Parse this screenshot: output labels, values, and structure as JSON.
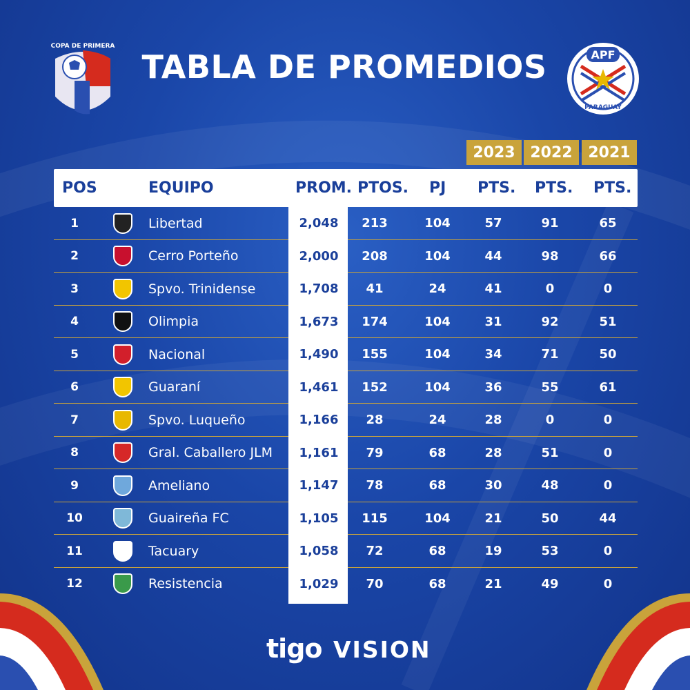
{
  "header": {
    "title": "TABLA DE PROMEDIOS",
    "left_logo_text": "COPA DE PRIMERA",
    "right_logo_text": "APF",
    "right_logo_subtext": "PARAGUAY"
  },
  "years": [
    "2023",
    "2022",
    "2021"
  ],
  "columns": {
    "pos": "POS",
    "equipo": "EQUIPO",
    "prom": "PROM.",
    "ptos": "PTOS.",
    "pj": "PJ",
    "pts2023": "PTS.",
    "pts2022": "PTS.",
    "pts2021": "PTS."
  },
  "rows": [
    {
      "pos": "1",
      "team": "Libertad",
      "prom": "2,048",
      "ptos": "213",
      "pj": "104",
      "p2023": "57",
      "p2022": "91",
      "p2021": "65",
      "crest_color": "#222222"
    },
    {
      "pos": "2",
      "team": "Cerro Porteño",
      "prom": "2,000",
      "ptos": "208",
      "pj": "104",
      "p2023": "44",
      "p2022": "98",
      "p2021": "66",
      "crest_color": "#c8102e"
    },
    {
      "pos": "3",
      "team": "Spvo. Trinidense",
      "prom": "1,708",
      "ptos": "41",
      "pj": "24",
      "p2023": "41",
      "p2022": "0",
      "p2021": "0",
      "crest_color": "#f2c500"
    },
    {
      "pos": "4",
      "team": "Olimpia",
      "prom": "1,673",
      "ptos": "174",
      "pj": "104",
      "p2023": "31",
      "p2022": "92",
      "p2021": "51",
      "crest_color": "#111111"
    },
    {
      "pos": "5",
      "team": "Nacional",
      "prom": "1,490",
      "ptos": "155",
      "pj": "104",
      "p2023": "34",
      "p2022": "71",
      "p2021": "50",
      "crest_color": "#d21f2b"
    },
    {
      "pos": "6",
      "team": "Guaraní",
      "prom": "1,461",
      "ptos": "152",
      "pj": "104",
      "p2023": "36",
      "p2022": "55",
      "p2021": "61",
      "crest_color": "#f2c500"
    },
    {
      "pos": "7",
      "team": "Spvo. Luqueño",
      "prom": "1,166",
      "ptos": "28",
      "pj": "24",
      "p2023": "28",
      "p2022": "0",
      "p2021": "0",
      "crest_color": "#e8b800"
    },
    {
      "pos": "8",
      "team": "Gral. Caballero JLM",
      "prom": "1,161",
      "ptos": "79",
      "pj": "68",
      "p2023": "28",
      "p2022": "51",
      "p2021": "0",
      "crest_color": "#d62828"
    },
    {
      "pos": "9",
      "team": "Ameliano",
      "prom": "1,147",
      "ptos": "78",
      "pj": "68",
      "p2023": "30",
      "p2022": "48",
      "p2021": "0",
      "crest_color": "#6fa8dc"
    },
    {
      "pos": "10",
      "team": "Guaireña FC",
      "prom": "1,105",
      "ptos": "115",
      "pj": "104",
      "p2023": "21",
      "p2022": "50",
      "p2021": "44",
      "crest_color": "#7fb8d8"
    },
    {
      "pos": "11",
      "team": "Tacuary",
      "prom": "1,058",
      "ptos": "72",
      "pj": "68",
      "p2023": "19",
      "p2022": "53",
      "p2021": "0",
      "crest_color": "#ffffff"
    },
    {
      "pos": "12",
      "team": "Resistencia",
      "prom": "1,029",
      "ptos": "70",
      "pj": "68",
      "p2023": "21",
      "p2022": "49",
      "p2021": "0",
      "crest_color": "#3a9a4a"
    }
  ],
  "sponsors": {
    "tigo": "tigo",
    "vision": "VISION"
  },
  "colors": {
    "background": "#1a46a8",
    "gold": "#c9a33b",
    "header_text": "#1a3f9a",
    "red": "#d52b1e"
  }
}
